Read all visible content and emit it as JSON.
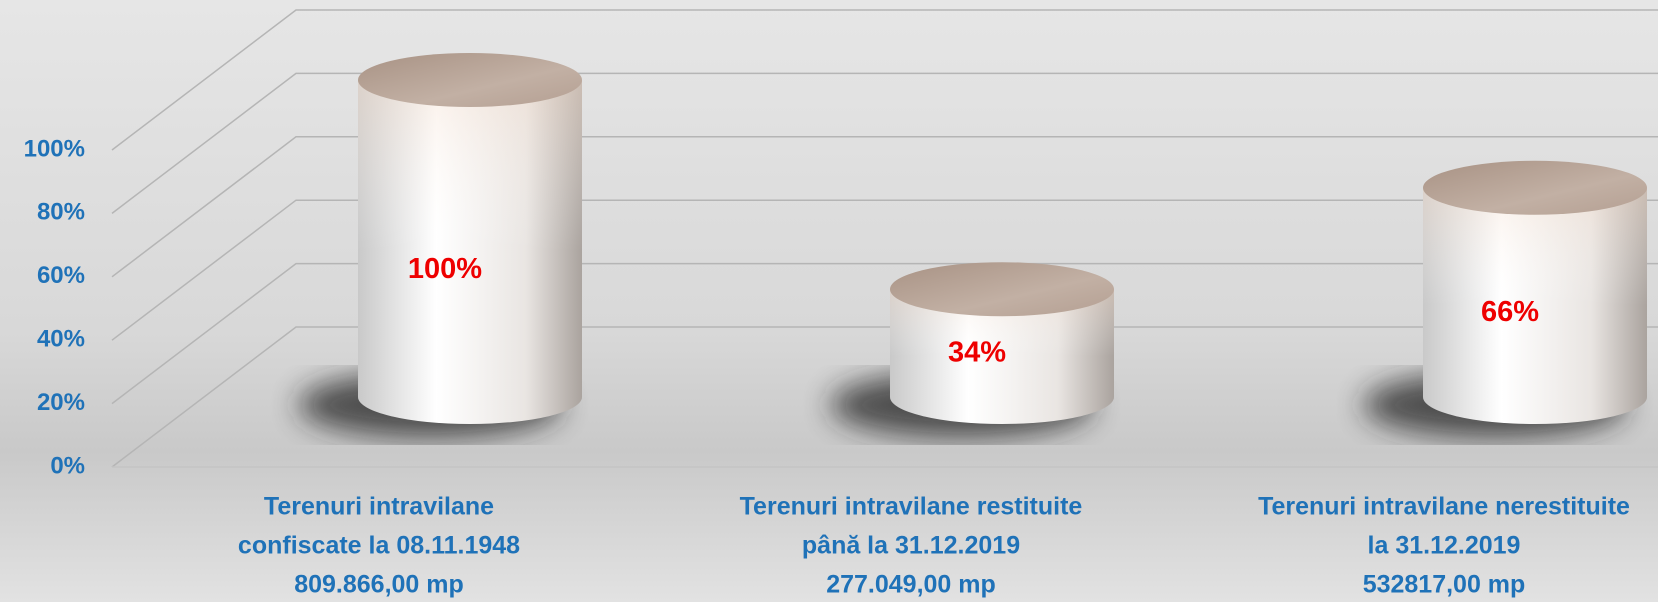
{
  "chart_data": {
    "type": "cylinder",
    "categories": [
      [
        "Terenuri intravilane",
        "confiscate la 08.11.1948",
        "809.866,00 mp"
      ],
      [
        "Terenuri intravilane restituite",
        "până  la 31.12.2019",
        "277.049,00 mp"
      ],
      [
        "Terenuri intravilane nerestituite",
        "la 31.12.2019",
        "532817,00 mp"
      ]
    ],
    "values": [
      100,
      34,
      66
    ],
    "value_labels": [
      "100%",
      "34%",
      "66%"
    ],
    "ylim": [
      0,
      100
    ],
    "yticks": [
      {
        "value": 0,
        "label": "0%"
      },
      {
        "value": 20,
        "label": "20%"
      },
      {
        "value": 40,
        "label": "40%"
      },
      {
        "value": 60,
        "label": "60%"
      },
      {
        "value": 80,
        "label": "80%"
      },
      {
        "value": 100,
        "label": "100%"
      }
    ],
    "grid": true
  }
}
